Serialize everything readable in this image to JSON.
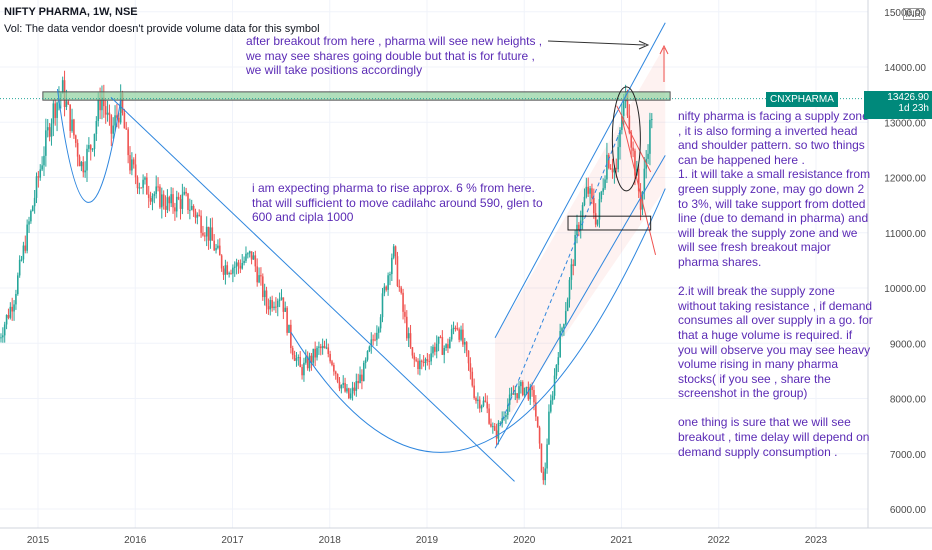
{
  "header": {
    "title": "NIFTY PHARMA, 1W, NSE",
    "volume_note": "Vol: The data vendor doesn't provide volume data for this symbol"
  },
  "annotations": {
    "top": "after breakout from here , pharma will see new heights , we may see shares going double but that is for future , we will take positions accordingly",
    "middle": "i am expecting pharma to rise approx. 6 % from here. that will sufficient to move cadilahc around 590, glen to 600 and cipla 1000",
    "right": [
      "nifty pharma is facing a supply zone , it is also forming a inverted head and shoulder pattern. so two things can be happened here .",
      "1. it will take a small resistance from green supply zone, may go down 2 to 3%, will take support from dotted line (due to demand in pharma) and will break the supply zone and we will see fresh breakout major pharma shares.",
      "",
      "2.it will break the supply zone without taking resistance , if demand consumes all over supply in a go. for that a huge volume is required. if you will observe you may see heavy volume rising in many pharma stocks( if you see , share the screenshot in the group)",
      "",
      "one thing is sure that we will see breakout , time delay will depend on demand supply consumption ."
    ]
  },
  "price_tag": {
    "symbol": "CNXPHARMA",
    "value": "13426.90",
    "countdown": "1d 23h"
  },
  "currency": "INR",
  "colors": {
    "up": "#26a69a",
    "down": "#ef5350",
    "trend": "#2e86de",
    "note": "#5b2bb5",
    "supply_zone": "#8fd19e"
  },
  "chart_data": {
    "type": "candlestick",
    "title": "NIFTY PHARMA, 1W, NSE",
    "x_ticks": [
      "2015",
      "2016",
      "2017",
      "2018",
      "2019",
      "2020",
      "2021",
      "2022",
      "2023"
    ],
    "y_ticks": [
      6000,
      7000,
      8000,
      9000,
      10000,
      11000,
      12000,
      13000,
      14000,
      15000
    ],
    "y_tick_labels": [
      "6000.00",
      "7000.00",
      "8000.00",
      "9000.00",
      "10000.00",
      "11000.00",
      "12000.00",
      "13000.00",
      "14000.00",
      "15000.00"
    ],
    "ylim": [
      5800,
      15100
    ],
    "xlim": [
      2014.6,
      2023.7
    ],
    "last_price": 13426.9,
    "supply_zone": [
      13400,
      13550
    ],
    "support_box": {
      "x": [
        2020.45,
        2021.3
      ],
      "y": [
        11050,
        11300
      ]
    },
    "close_series": [
      [
        2014.6,
        9100
      ],
      [
        2014.75,
        9800
      ],
      [
        2014.9,
        11100
      ],
      [
        2015.05,
        12400
      ],
      [
        2015.15,
        13200
      ],
      [
        2015.25,
        13600
      ],
      [
        2015.35,
        12900
      ],
      [
        2015.45,
        12200
      ],
      [
        2015.55,
        12600
      ],
      [
        2015.65,
        13500
      ],
      [
        2015.75,
        12800
      ],
      [
        2015.85,
        13300
      ],
      [
        2015.95,
        12200
      ],
      [
        2016.05,
        11900
      ],
      [
        2016.2,
        11700
      ],
      [
        2016.35,
        11500
      ],
      [
        2016.5,
        11600
      ],
      [
        2016.6,
        11400
      ],
      [
        2016.75,
        11000
      ],
      [
        2016.9,
        10400
      ],
      [
        2017.05,
        10400
      ],
      [
        2017.2,
        10600
      ],
      [
        2017.35,
        9700
      ],
      [
        2017.5,
        9900
      ],
      [
        2017.6,
        9000
      ],
      [
        2017.7,
        8500
      ],
      [
        2017.8,
        8700
      ],
      [
        2017.9,
        8900
      ],
      [
        2018.0,
        8800
      ],
      [
        2018.1,
        8300
      ],
      [
        2018.2,
        8000
      ],
      [
        2018.35,
        8500
      ],
      [
        2018.5,
        9400
      ],
      [
        2018.65,
        10700
      ],
      [
        2018.75,
        9600
      ],
      [
        2018.85,
        8700
      ],
      [
        2018.95,
        8600
      ],
      [
        2019.1,
        9000
      ],
      [
        2019.2,
        8900
      ],
      [
        2019.3,
        9400
      ],
      [
        2019.4,
        8800
      ],
      [
        2019.5,
        8000
      ],
      [
        2019.6,
        7900
      ],
      [
        2019.7,
        7300
      ],
      [
        2019.8,
        7800
      ],
      [
        2019.9,
        8100
      ],
      [
        2020.0,
        8200
      ],
      [
        2020.1,
        8000
      ],
      [
        2020.2,
        6400
      ],
      [
        2020.25,
        7600
      ],
      [
        2020.35,
        8900
      ],
      [
        2020.45,
        9900
      ],
      [
        2020.55,
        11100
      ],
      [
        2020.65,
        11800
      ],
      [
        2020.75,
        11200
      ],
      [
        2020.85,
        12400
      ],
      [
        2020.95,
        12100
      ],
      [
        2021.0,
        13100
      ],
      [
        2021.05,
        13500
      ],
      [
        2021.12,
        12400
      ],
      [
        2021.2,
        11500
      ],
      [
        2021.27,
        12600
      ],
      [
        2021.33,
        13430
      ]
    ]
  }
}
